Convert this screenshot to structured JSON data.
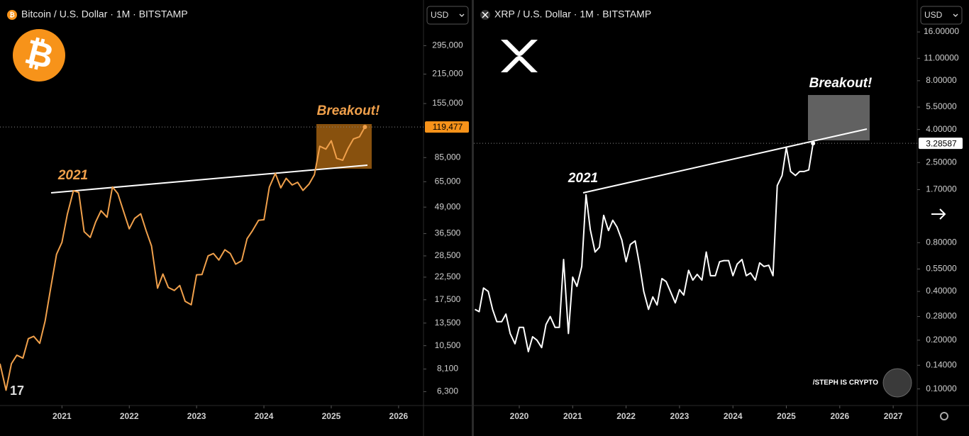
{
  "chart_data": [
    {
      "type": "line",
      "title": "Bitcoin / U.S. Dollar · 1M · BITSTAMP",
      "currency": "USD",
      "color": "#f0a04b",
      "log_scale": true,
      "annotations": [
        "2021",
        "Breakout!"
      ],
      "last_label": "119,477",
      "xlim": [
        2020.08,
        2026.37
      ],
      "ylim": [
        5400,
        490000
      ],
      "xticks": [
        2021,
        2022,
        2023,
        2024,
        2025,
        2026
      ],
      "yticks": [
        {
          "value": 295000,
          "label": "295,000"
        },
        {
          "value": 215000,
          "label": "215,000"
        },
        {
          "value": 155000,
          "label": "155,000"
        },
        {
          "value": 85000,
          "label": "85,000"
        },
        {
          "value": 65000,
          "label": "65,000"
        },
        {
          "value": 49000,
          "label": "49,000"
        },
        {
          "value": 36500,
          "label": "36,500"
        },
        {
          "value": 28500,
          "label": "28,500"
        },
        {
          "value": 22500,
          "label": "22,500"
        },
        {
          "value": 17500,
          "label": "17,500"
        },
        {
          "value": 13500,
          "label": "13,500"
        },
        {
          "value": 10500,
          "label": "10,500"
        },
        {
          "value": 8100,
          "label": "8,100"
        },
        {
          "value": 6300,
          "label": "6,300"
        }
      ],
      "x": [
        2020.08,
        2020.17,
        2020.25,
        2020.33,
        2020.42,
        2020.5,
        2020.58,
        2020.67,
        2020.75,
        2020.83,
        2020.92,
        2021.0,
        2021.08,
        2021.17,
        2021.25,
        2021.33,
        2021.42,
        2021.5,
        2021.58,
        2021.67,
        2021.75,
        2021.83,
        2021.92,
        2022.0,
        2022.08,
        2022.17,
        2022.25,
        2022.33,
        2022.42,
        2022.5,
        2022.58,
        2022.67,
        2022.75,
        2022.83,
        2022.92,
        2023.0,
        2023.08,
        2023.17,
        2023.25,
        2023.33,
        2023.42,
        2023.5,
        2023.58,
        2023.67,
        2023.75,
        2023.83,
        2023.92,
        2024.0,
        2024.08,
        2024.17,
        2024.25,
        2024.33,
        2024.42,
        2024.5,
        2024.58,
        2024.67,
        2024.75,
        2024.83,
        2024.92,
        2025.0,
        2025.08,
        2025.17,
        2025.25,
        2025.33,
        2025.42,
        2025.5
      ],
      "values": [
        8600,
        6400,
        8600,
        9450,
        9140,
        11350,
        11650,
        10780,
        13800,
        19700,
        29000,
        33100,
        45200,
        58800,
        57700,
        37300,
        35000,
        41500,
        47100,
        43800,
        61300,
        57000,
        46300,
        38500,
        43200,
        45500,
        37700,
        31800,
        19900,
        23300,
        20050,
        19400,
        20500,
        17200,
        16550,
        23100,
        23150,
        28500,
        29250,
        27200,
        30500,
        29250,
        26000,
        27000,
        34500,
        37700,
        42300,
        42600,
        61200,
        71300,
        60700,
        67500,
        62700,
        64600,
        59000,
        63300,
        70200,
        96400,
        93400,
        102400,
        84300,
        82500,
        94200,
        104600,
        107100,
        119477
      ]
    },
    {
      "type": "line",
      "title": "XRP / U.S. Dollar · 1M · BITSTAMP",
      "currency": "USD",
      "color": "#ffffff",
      "log_scale": true,
      "annotations": [
        "2021",
        "Breakout!"
      ],
      "last_label": "3.28587",
      "xlim": [
        2019.15,
        2027.45
      ],
      "ylim": [
        0.079,
        25.2
      ],
      "xticks": [
        2020,
        2021,
        2022,
        2023,
        2024,
        2025,
        2026,
        2027
      ],
      "yticks": [
        {
          "value": 16,
          "label": "16.00000"
        },
        {
          "value": 11,
          "label": "11.00000"
        },
        {
          "value": 8,
          "label": "8.00000"
        },
        {
          "value": 5.5,
          "label": "5.50000"
        },
        {
          "value": 4,
          "label": "4.00000"
        },
        {
          "value": 2.5,
          "label": "2.50000"
        },
        {
          "value": 1.7,
          "label": "1.70000"
        },
        {
          "value": 0.8,
          "label": "0.80000"
        },
        {
          "value": 0.55,
          "label": "0.55000"
        },
        {
          "value": 0.4,
          "label": "0.40000"
        },
        {
          "value": 0.28,
          "label": "0.28000"
        },
        {
          "value": 0.2,
          "label": "0.20000"
        },
        {
          "value": 0.14,
          "label": "0.14000"
        },
        {
          "value": 0.1,
          "label": "0.10000"
        }
      ],
      "x": [
        2019.17,
        2019.25,
        2019.33,
        2019.42,
        2019.5,
        2019.58,
        2019.67,
        2019.75,
        2019.83,
        2019.92,
        2020.0,
        2020.08,
        2020.17,
        2020.25,
        2020.33,
        2020.42,
        2020.5,
        2020.58,
        2020.67,
        2020.75,
        2020.83,
        2020.92,
        2021.0,
        2021.08,
        2021.17,
        2021.25,
        2021.33,
        2021.42,
        2021.5,
        2021.58,
        2021.67,
        2021.75,
        2021.83,
        2021.92,
        2022.0,
        2022.08,
        2022.17,
        2022.25,
        2022.33,
        2022.42,
        2022.5,
        2022.58,
        2022.67,
        2022.75,
        2022.83,
        2022.92,
        2023.0,
        2023.08,
        2023.17,
        2023.25,
        2023.33,
        2023.42,
        2023.5,
        2023.58,
        2023.67,
        2023.75,
        2023.83,
        2023.92,
        2024.0,
        2024.08,
        2024.17,
        2024.25,
        2024.33,
        2024.42,
        2024.5,
        2024.58,
        2024.67,
        2024.75,
        2024.83,
        2024.92,
        2025.0,
        2025.08,
        2025.17,
        2025.25,
        2025.33,
        2025.42,
        2025.5
      ],
      "values": [
        0.31,
        0.3,
        0.42,
        0.4,
        0.31,
        0.26,
        0.26,
        0.29,
        0.22,
        0.19,
        0.24,
        0.24,
        0.17,
        0.21,
        0.2,
        0.18,
        0.25,
        0.28,
        0.24,
        0.24,
        0.63,
        0.22,
        0.49,
        0.43,
        0.57,
        1.58,
        0.96,
        0.7,
        0.75,
        1.18,
        0.95,
        1.1,
        1.0,
        0.83,
        0.61,
        0.78,
        0.82,
        0.59,
        0.4,
        0.31,
        0.37,
        0.33,
        0.48,
        0.46,
        0.4,
        0.34,
        0.41,
        0.38,
        0.54,
        0.47,
        0.51,
        0.47,
        0.7,
        0.5,
        0.5,
        0.61,
        0.62,
        0.62,
        0.5,
        0.59,
        0.63,
        0.5,
        0.52,
        0.47,
        0.6,
        0.57,
        0.58,
        0.5,
        1.8,
        2.08,
        3.1,
        2.2,
        2.08,
        2.2,
        2.2,
        2.25,
        3.28587
      ]
    }
  ],
  "watermark": "/STEPH IS CRYPTO"
}
